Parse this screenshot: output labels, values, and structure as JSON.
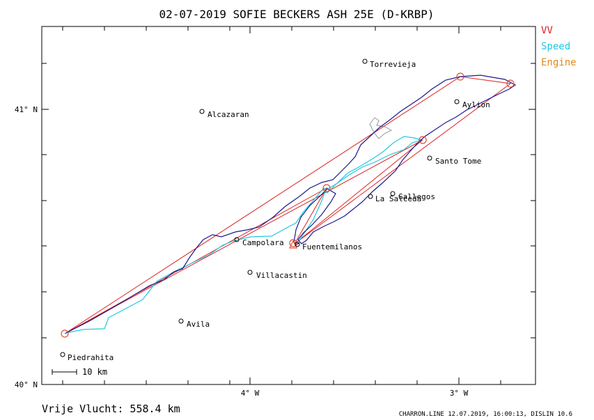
{
  "header": {
    "title": "02-07-2019   SOFIE BECKERS   ASH 25E (D-KRBP)"
  },
  "legend": {
    "vv": {
      "label": "VV",
      "color": "#dd2222"
    },
    "speed": {
      "label": "Speed",
      "color": "#22c8e0"
    },
    "engine": {
      "label": "Engine",
      "color": "#e08a1a"
    }
  },
  "axes": {
    "lat_top_label": "41° N",
    "lat_bottom_label": "40° N",
    "lon_left_label": "4° W",
    "lon_right_label": "3° W"
  },
  "places": [
    {
      "name": "Torrevieja"
    },
    {
      "name": "Alcazaran"
    },
    {
      "name": "Aylion"
    },
    {
      "name": "Santo Tome"
    },
    {
      "name": "Gallegos"
    },
    {
      "name": "La Salceda"
    },
    {
      "name": "Campolara"
    },
    {
      "name": "Fuentemilanos"
    },
    {
      "name": "Villacastin"
    },
    {
      "name": "Avila"
    },
    {
      "name": "Piedrahita"
    }
  ],
  "scale": {
    "label": "10 km"
  },
  "footer": {
    "distance_label": "Vrije Vlucht:  558.4 km",
    "software_info": "CHARRON.LINE 12.07.2019, 16:00:13, DISLIN 10.6"
  },
  "colors": {
    "track": "#1a1a8c",
    "task": "#dd2222",
    "speed_track": "#22c8e0",
    "turnpoint": "#e05030",
    "outline": "#999999"
  }
}
